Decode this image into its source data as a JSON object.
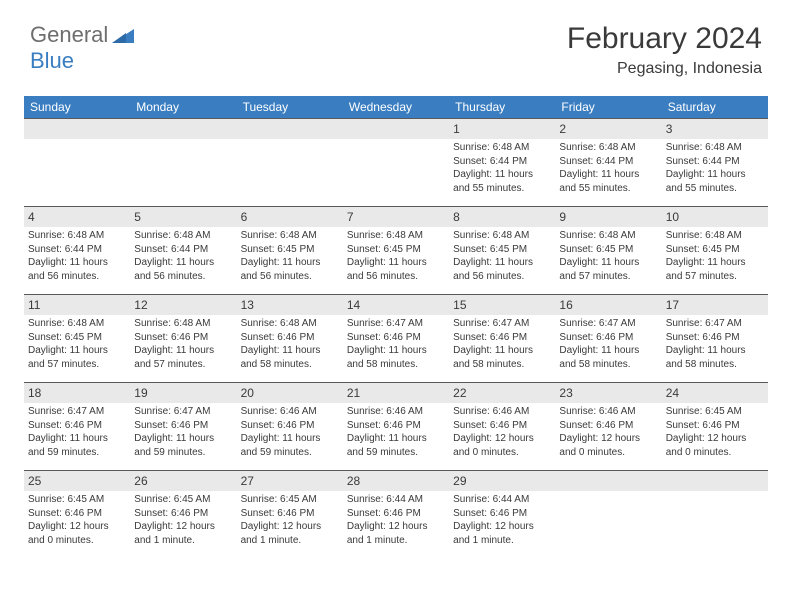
{
  "logo": {
    "general": "General",
    "blue": "Blue"
  },
  "title": "February 2024",
  "location": "Pegasing, Indonesia",
  "colors": {
    "header_bg": "#3a7ec1",
    "header_text": "#ffffff",
    "daynum_bg": "#e9e9e9",
    "border": "#5a5a5a",
    "text": "#3a3a3a",
    "logo_gray": "#6e6e6e",
    "logo_blue": "#3a7ec1",
    "page_bg": "#ffffff"
  },
  "day_headers": [
    "Sunday",
    "Monday",
    "Tuesday",
    "Wednesday",
    "Thursday",
    "Friday",
    "Saturday"
  ],
  "weeks": [
    [
      {
        "empty": true
      },
      {
        "empty": true
      },
      {
        "empty": true
      },
      {
        "empty": true
      },
      {
        "day": "1",
        "sunrise": "Sunrise: 6:48 AM",
        "sunset": "Sunset: 6:44 PM",
        "daylight": "Daylight: 11 hours and 55 minutes."
      },
      {
        "day": "2",
        "sunrise": "Sunrise: 6:48 AM",
        "sunset": "Sunset: 6:44 PM",
        "daylight": "Daylight: 11 hours and 55 minutes."
      },
      {
        "day": "3",
        "sunrise": "Sunrise: 6:48 AM",
        "sunset": "Sunset: 6:44 PM",
        "daylight": "Daylight: 11 hours and 55 minutes."
      }
    ],
    [
      {
        "day": "4",
        "sunrise": "Sunrise: 6:48 AM",
        "sunset": "Sunset: 6:44 PM",
        "daylight": "Daylight: 11 hours and 56 minutes."
      },
      {
        "day": "5",
        "sunrise": "Sunrise: 6:48 AM",
        "sunset": "Sunset: 6:44 PM",
        "daylight": "Daylight: 11 hours and 56 minutes."
      },
      {
        "day": "6",
        "sunrise": "Sunrise: 6:48 AM",
        "sunset": "Sunset: 6:45 PM",
        "daylight": "Daylight: 11 hours and 56 minutes."
      },
      {
        "day": "7",
        "sunrise": "Sunrise: 6:48 AM",
        "sunset": "Sunset: 6:45 PM",
        "daylight": "Daylight: 11 hours and 56 minutes."
      },
      {
        "day": "8",
        "sunrise": "Sunrise: 6:48 AM",
        "sunset": "Sunset: 6:45 PM",
        "daylight": "Daylight: 11 hours and 56 minutes."
      },
      {
        "day": "9",
        "sunrise": "Sunrise: 6:48 AM",
        "sunset": "Sunset: 6:45 PM",
        "daylight": "Daylight: 11 hours and 57 minutes."
      },
      {
        "day": "10",
        "sunrise": "Sunrise: 6:48 AM",
        "sunset": "Sunset: 6:45 PM",
        "daylight": "Daylight: 11 hours and 57 minutes."
      }
    ],
    [
      {
        "day": "11",
        "sunrise": "Sunrise: 6:48 AM",
        "sunset": "Sunset: 6:45 PM",
        "daylight": "Daylight: 11 hours and 57 minutes."
      },
      {
        "day": "12",
        "sunrise": "Sunrise: 6:48 AM",
        "sunset": "Sunset: 6:46 PM",
        "daylight": "Daylight: 11 hours and 57 minutes."
      },
      {
        "day": "13",
        "sunrise": "Sunrise: 6:48 AM",
        "sunset": "Sunset: 6:46 PM",
        "daylight": "Daylight: 11 hours and 58 minutes."
      },
      {
        "day": "14",
        "sunrise": "Sunrise: 6:47 AM",
        "sunset": "Sunset: 6:46 PM",
        "daylight": "Daylight: 11 hours and 58 minutes."
      },
      {
        "day": "15",
        "sunrise": "Sunrise: 6:47 AM",
        "sunset": "Sunset: 6:46 PM",
        "daylight": "Daylight: 11 hours and 58 minutes."
      },
      {
        "day": "16",
        "sunrise": "Sunrise: 6:47 AM",
        "sunset": "Sunset: 6:46 PM",
        "daylight": "Daylight: 11 hours and 58 minutes."
      },
      {
        "day": "17",
        "sunrise": "Sunrise: 6:47 AM",
        "sunset": "Sunset: 6:46 PM",
        "daylight": "Daylight: 11 hours and 58 minutes."
      }
    ],
    [
      {
        "day": "18",
        "sunrise": "Sunrise: 6:47 AM",
        "sunset": "Sunset: 6:46 PM",
        "daylight": "Daylight: 11 hours and 59 minutes."
      },
      {
        "day": "19",
        "sunrise": "Sunrise: 6:47 AM",
        "sunset": "Sunset: 6:46 PM",
        "daylight": "Daylight: 11 hours and 59 minutes."
      },
      {
        "day": "20",
        "sunrise": "Sunrise: 6:46 AM",
        "sunset": "Sunset: 6:46 PM",
        "daylight": "Daylight: 11 hours and 59 minutes."
      },
      {
        "day": "21",
        "sunrise": "Sunrise: 6:46 AM",
        "sunset": "Sunset: 6:46 PM",
        "daylight": "Daylight: 11 hours and 59 minutes."
      },
      {
        "day": "22",
        "sunrise": "Sunrise: 6:46 AM",
        "sunset": "Sunset: 6:46 PM",
        "daylight": "Daylight: 12 hours and 0 minutes."
      },
      {
        "day": "23",
        "sunrise": "Sunrise: 6:46 AM",
        "sunset": "Sunset: 6:46 PM",
        "daylight": "Daylight: 12 hours and 0 minutes."
      },
      {
        "day": "24",
        "sunrise": "Sunrise: 6:45 AM",
        "sunset": "Sunset: 6:46 PM",
        "daylight": "Daylight: 12 hours and 0 minutes."
      }
    ],
    [
      {
        "day": "25",
        "sunrise": "Sunrise: 6:45 AM",
        "sunset": "Sunset: 6:46 PM",
        "daylight": "Daylight: 12 hours and 0 minutes."
      },
      {
        "day": "26",
        "sunrise": "Sunrise: 6:45 AM",
        "sunset": "Sunset: 6:46 PM",
        "daylight": "Daylight: 12 hours and 1 minute."
      },
      {
        "day": "27",
        "sunrise": "Sunrise: 6:45 AM",
        "sunset": "Sunset: 6:46 PM",
        "daylight": "Daylight: 12 hours and 1 minute."
      },
      {
        "day": "28",
        "sunrise": "Sunrise: 6:44 AM",
        "sunset": "Sunset: 6:46 PM",
        "daylight": "Daylight: 12 hours and 1 minute."
      },
      {
        "day": "29",
        "sunrise": "Sunrise: 6:44 AM",
        "sunset": "Sunset: 6:46 PM",
        "daylight": "Daylight: 12 hours and 1 minute."
      },
      {
        "empty": true
      },
      {
        "empty": true
      }
    ]
  ]
}
